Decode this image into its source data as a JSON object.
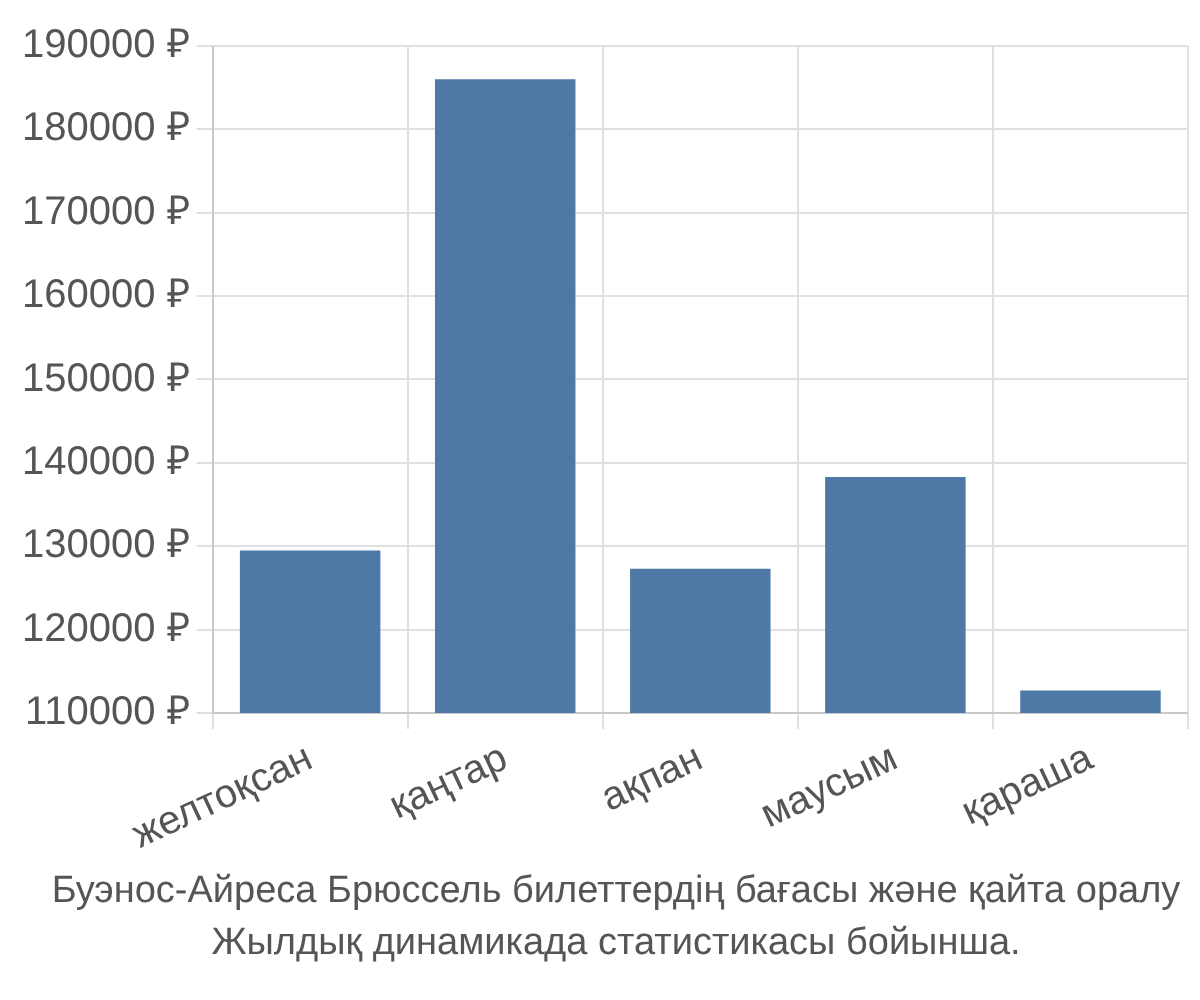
{
  "chart_data": {
    "type": "bar",
    "categories": [
      "желтоқсан",
      "қаңтар",
      "ақпан",
      "маусым",
      "қараша"
    ],
    "values": [
      129500,
      186000,
      127300,
      138300,
      112700
    ],
    "color": "#4e79a7",
    "ylim": [
      110000,
      190000
    ],
    "yticks": [
      {
        "value": 110000,
        "label": "110000 ₽"
      },
      {
        "value": 120000,
        "label": "120000 ₽"
      },
      {
        "value": 130000,
        "label": "130000 ₽"
      },
      {
        "value": 140000,
        "label": "140000 ₽"
      },
      {
        "value": 150000,
        "label": "150000 ₽"
      },
      {
        "value": 160000,
        "label": "160000 ₽"
      },
      {
        "value": 170000,
        "label": "170000 ₽"
      },
      {
        "value": 180000,
        "label": "180000 ₽"
      },
      {
        "value": 190000,
        "label": "190000 ₽"
      }
    ],
    "grid": true,
    "annotations": [
      "Буэнос-Айреса Брюссель билеттердің бағасы және қайта оралу",
      "Жылдық динамикада статистикасы бойынша."
    ]
  }
}
